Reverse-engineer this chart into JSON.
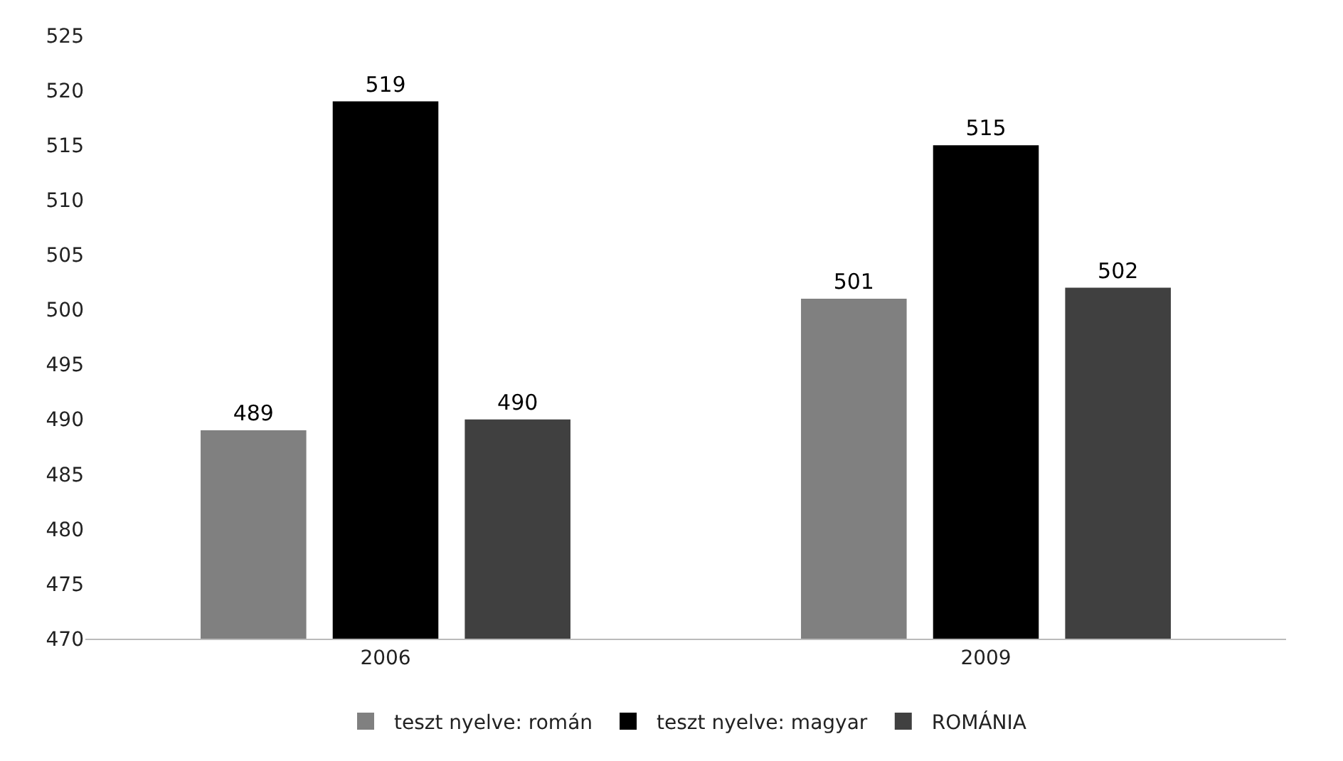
{
  "chart_data": {
    "type": "bar",
    "categories": [
      "2006",
      "2009"
    ],
    "series": [
      {
        "name": "teszt nyelve: román",
        "color": "#808080",
        "values": [
          489,
          501
        ]
      },
      {
        "name": "teszt nyelve: magyar",
        "color": "#000000",
        "values": [
          519,
          515
        ]
      },
      {
        "name": "ROMÁNIA",
        "color": "#404040",
        "values": [
          490,
          502
        ]
      }
    ],
    "ylim": [
      470,
      525
    ],
    "yticks": [
      470,
      475,
      480,
      485,
      490,
      495,
      500,
      505,
      510,
      515,
      520,
      525
    ],
    "grid": false,
    "legend": "bottom",
    "data_labels": true
  }
}
